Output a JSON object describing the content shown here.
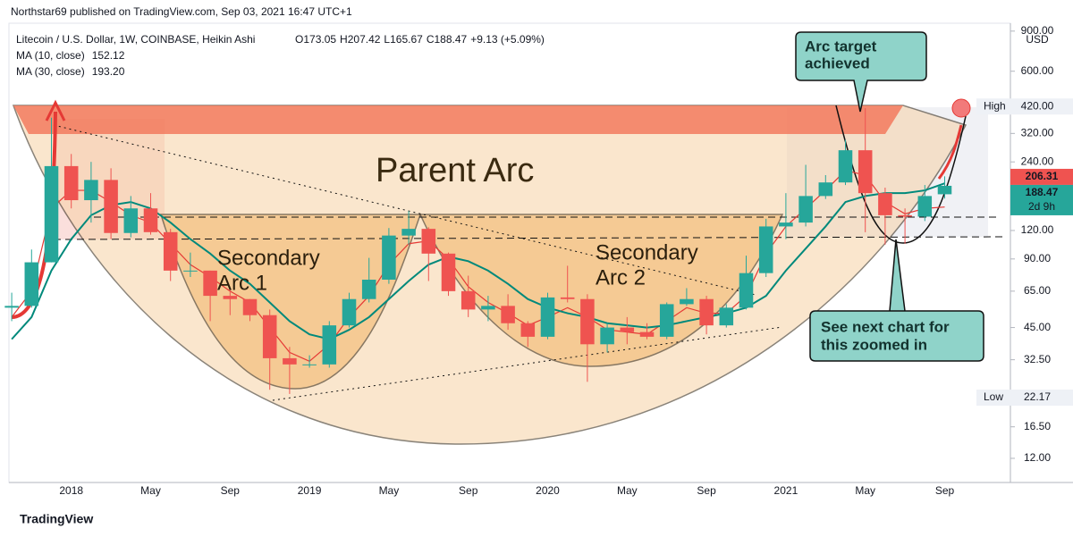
{
  "header": {
    "publisher": "Northstar69 published on TradingView.com, Sep 03, 2021 16:47 UTC+1",
    "brand": "TradingView"
  },
  "chart_data": {
    "type": "candlestick",
    "title": "Litecoin / U.S. Dollar, 1W, COINBASE, Heikin Ashi",
    "ohlc": [
      {
        "label": "O",
        "value": 173.05
      },
      {
        "label": "H",
        "value": 207.42
      },
      {
        "label": "L",
        "value": 165.67
      },
      {
        "label": "C",
        "value": 188.47
      }
    ],
    "change": "+9.13 (+5.09%)",
    "currency": "USD",
    "log_scale": true,
    "ylim": [
      9.4,
      940
    ],
    "yticks": [
      {
        "value": 12,
        "label": "12.00"
      },
      {
        "value": 16.5,
        "label": "16.50"
      },
      {
        "value": 32.5,
        "label": "32.50"
      },
      {
        "value": 45,
        "label": "45.00"
      },
      {
        "value": 65,
        "label": "65.00"
      },
      {
        "value": 90,
        "label": "90.00"
      },
      {
        "value": 120,
        "label": "120.00"
      },
      {
        "value": 240,
        "label": "240.00"
      },
      {
        "value": 320,
        "label": "320.00"
      },
      {
        "value": 600,
        "label": "600.00"
      },
      {
        "value": 900,
        "label": "900.00"
      }
    ],
    "categories": [
      null,
      null,
      null,
      "2018",
      null,
      null,
      null,
      "May",
      null,
      null,
      null,
      "Sep",
      null,
      null,
      null,
      "2019",
      null,
      null,
      null,
      "May",
      null,
      null,
      null,
      "Sep",
      null,
      null,
      null,
      "2020",
      null,
      null,
      null,
      "May",
      null,
      null,
      null,
      "Sep",
      null,
      null,
      null,
      "2021",
      null,
      null,
      null,
      "May",
      null,
      null,
      null,
      "Sep"
    ],
    "up_color": "#26a69a",
    "down_color": "#ef5350",
    "open": [
      55,
      56,
      87,
      230,
      163,
      200,
      117,
      150,
      118,
      80,
      80,
      62,
      60,
      51,
      33,
      31,
      31,
      46,
      60,
      73,
      114,
      122,
      95,
      65,
      54,
      56,
      47,
      41,
      61,
      60,
      38,
      45,
      43,
      41,
      57,
      60,
      46,
      55,
      78,
      125,
      130,
      170,
      195,
      270,
      175,
      140,
      138,
      173.05
    ],
    "high": [
      64,
      99,
      375,
      260,
      240,
      225,
      170,
      175,
      122,
      96,
      80,
      67,
      60,
      54,
      37,
      34,
      48,
      64,
      91,
      123,
      146,
      124,
      96,
      76,
      62,
      63,
      48,
      64,
      84,
      63,
      47,
      50,
      47,
      58,
      67,
      62,
      57,
      93,
      135,
      175,
      233,
      210,
      300,
      413,
      185,
      150,
      190,
      207.42
    ],
    "low": [
      48,
      55,
      87,
      150,
      130,
      110,
      112,
      115,
      72,
      75,
      48,
      51,
      48,
      24,
      23,
      30,
      30,
      45,
      58,
      70,
      104,
      72,
      62,
      50,
      48,
      44,
      37,
      40,
      58,
      26,
      35,
      38,
      40,
      40,
      56,
      42,
      45,
      54,
      75,
      110,
      125,
      165,
      190,
      118,
      104,
      105,
      132,
      165.67
    ],
    "close": [
      56,
      87,
      230,
      163,
      200,
      117,
      150,
      118,
      80,
      80,
      62,
      60,
      51,
      33,
      31,
      31,
      46,
      60,
      73,
      114,
      122,
      95,
      65,
      54,
      56,
      47,
      41,
      61,
      60,
      38,
      45,
      43,
      41,
      57,
      60,
      46,
      55,
      78,
      125,
      130,
      170,
      195,
      270,
      175,
      140,
      138,
      170,
      188.47
    ],
    "indicators": [
      {
        "name": "MA (10, close)",
        "last": 152.12,
        "color": "#e53935",
        "values": [
          50,
          65,
          150,
          180,
          180,
          160,
          140,
          130,
          105,
          85,
          75,
          65,
          58,
          45,
          35,
          32,
          38,
          50,
          62,
          85,
          105,
          108,
          90,
          68,
          58,
          52,
          46,
          50,
          55,
          50,
          44,
          43,
          42,
          48,
          55,
          52,
          52,
          62,
          95,
          125,
          150,
          180,
          220,
          210,
          160,
          142,
          150,
          152.12
        ]
      },
      {
        "name": "MA (30, close)",
        "last": {
          "value": 193.2,
          "label": "193.20"
        },
        "color": "#00897b",
        "values": [
          40,
          50,
          80,
          110,
          140,
          155,
          160,
          150,
          130,
          110,
          95,
          80,
          70,
          58,
          48,
          42,
          40,
          44,
          50,
          60,
          72,
          85,
          92,
          88,
          80,
          70,
          60,
          55,
          52,
          50,
          47,
          46,
          45,
          46,
          48,
          50,
          52,
          55,
          62,
          80,
          100,
          125,
          160,
          170,
          175,
          175,
          180,
          193.2
        ]
      }
    ],
    "price_labels": {
      "high_name": "High",
      "high": {
        "value": 420,
        "label": "420.00"
      },
      "low_name": "Low",
      "low": 22.17,
      "ma_price": 206.31,
      "last_price": 188.47,
      "countdown": "2d 9h"
    },
    "annotations": {
      "parent": "Parent Arc",
      "secondary1": [
        "Secondary",
        "Arc 1"
      ],
      "secondary2": [
        "Secondary",
        "Arc 2"
      ],
      "target": [
        "Arc target",
        "achieved"
      ],
      "zoom": [
        "See next chart for",
        "this zoomed in"
      ]
    }
  }
}
